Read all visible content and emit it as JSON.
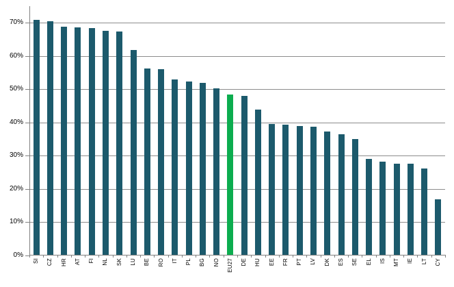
{
  "chart_data": {
    "type": "bar",
    "title": "",
    "xlabel": "",
    "ylabel": "",
    "categories": [
      "SI",
      "CZ",
      "HR",
      "AT",
      "FI",
      "NL",
      "SK",
      "LU",
      "BE",
      "RO",
      "IT",
      "PL",
      "BG",
      "NO",
      "EU27",
      "DE",
      "HU",
      "EE",
      "FR",
      "PT",
      "LV",
      "DK",
      "ES",
      "SE",
      "EL",
      "IS",
      "MT",
      "IE",
      "LT",
      "CY"
    ],
    "values": [
      70.9,
      70.5,
      68.9,
      68.7,
      68.5,
      67.6,
      67.4,
      61.8,
      56.2,
      56.1,
      52.9,
      52.4,
      52.0,
      50.3,
      48.4,
      48.0,
      43.9,
      39.6,
      39.3,
      39.0,
      38.8,
      37.3,
      36.4,
      35.1,
      29.1,
      28.3,
      27.7,
      27.6,
      26.1,
      16.8
    ],
    "highlight_category": "EU27",
    "ylim": [
      0,
      75
    ],
    "ytick_step": 10,
    "ytick_labels": [
      "0%",
      "10%",
      "20%",
      "30%",
      "40%",
      "50%",
      "60%",
      "70%"
    ],
    "grid": true,
    "legend_position": "none",
    "colors": {
      "bar": "#1C5A6C",
      "highlight": "#0CAD4F",
      "gridline": "#8C8C8C",
      "axis": "#808080",
      "text": "#000000",
      "background": "#FFFFFF"
    }
  }
}
